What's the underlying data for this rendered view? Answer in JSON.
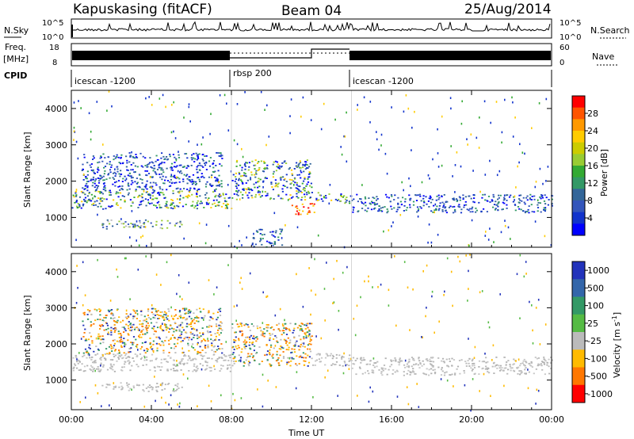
{
  "header": {
    "station": "Kapuskasing (fitACF)",
    "beam": "Beam 04",
    "date": "25/Aug/2014"
  },
  "top_panels": {
    "nsky_label": "N.Sky",
    "nsky_ticks": [
      "10^5",
      "10^0"
    ],
    "nsearch_label": "N.Search",
    "nsearch_ticks": [
      "10^5",
      "10^0"
    ],
    "freq_label_line1": "Freq.",
    "freq_label_line2": "[MHz]",
    "freq_ticks": [
      "18",
      "8"
    ],
    "nave_label": "Nave",
    "nave_ticks": [
      "60",
      "0"
    ],
    "cpid_label": "CPID",
    "cpid_segments": [
      {
        "name": "icescan -1200",
        "start_hour": 0,
        "end_hour": 8
      },
      {
        "name": "rbsp 200",
        "start_hour": 8,
        "end_hour": 14
      },
      {
        "name": "icescan -1200",
        "start_hour": 14,
        "end_hour": 24
      }
    ]
  },
  "power_colorbar": {
    "label": "Power [dB]",
    "ticks": [
      "28",
      "24",
      "20",
      "16",
      "12",
      "8",
      "4"
    ],
    "colors": [
      "#ff0000",
      "#ff5500",
      "#ff9900",
      "#ffcc00",
      "#cccc00",
      "#99cc33",
      "#33aa33",
      "#339966",
      "#336699",
      "#3355bb",
      "#1133cc",
      "#0000ff"
    ]
  },
  "velocity_colorbar": {
    "label": "Velocity [m s^-1]",
    "ticks": [
      "1000",
      "500",
      "100",
      "25",
      "-25",
      "-100",
      "-500",
      "-1000"
    ],
    "colors": [
      "#2233bb",
      "#3366aa",
      "#339966",
      "#55bb44",
      "#bbbbbb",
      "#ffbb00",
      "#ff7700",
      "#ff0000"
    ]
  },
  "chart_data": [
    {
      "type": "heatmap",
      "name": "power",
      "ylabel": "Slant Range [km]",
      "ylim": [
        180,
        4500
      ],
      "yticks": [
        1000,
        2000,
        3000,
        4000
      ],
      "xlim": [
        0,
        24
      ],
      "echo_regions": [
        {
          "t0": 0.0,
          "t1": 8.0,
          "r0": 1250,
          "r1": 1750,
          "level": "strong"
        },
        {
          "t0": 0.5,
          "t1": 7.5,
          "r0": 1750,
          "r1": 2800,
          "level": "medium"
        },
        {
          "t0": 1.5,
          "t1": 5.5,
          "r0": 700,
          "r1": 950,
          "level": "weak"
        },
        {
          "t0": 8.0,
          "t1": 12.0,
          "r0": 1500,
          "r1": 2600,
          "level": "strong"
        },
        {
          "t0": 11.0,
          "t1": 12.2,
          "r0": 1100,
          "r1": 1400,
          "level": "max"
        },
        {
          "t0": 12.2,
          "t1": 14.0,
          "r0": 1400,
          "r1": 1700,
          "level": "strong"
        },
        {
          "t0": 14.0,
          "t1": 24.0,
          "r0": 1150,
          "r1": 1650,
          "level": "medium"
        },
        {
          "t0": 9.0,
          "t1": 10.5,
          "r0": 200,
          "r1": 700,
          "level": "medium"
        }
      ]
    },
    {
      "type": "heatmap",
      "name": "velocity",
      "ylabel": "Slant Range [km]",
      "ylim": [
        180,
        4500
      ],
      "yticks": [
        1000,
        2000,
        3000,
        4000
      ],
      "xlim": [
        0,
        24
      ],
      "xticks": [
        "00:00",
        "04:00",
        "08:00",
        "12:00",
        "16:00",
        "20:00",
        "00:00"
      ],
      "xlabel": "Time UT",
      "echo_regions": [
        {
          "t0": 0.0,
          "t1": 8.0,
          "r0": 1250,
          "r1": 1750,
          "velocity": "ground"
        },
        {
          "t0": 0.5,
          "t1": 7.5,
          "r0": 1750,
          "r1": 3000,
          "velocity": "negative"
        },
        {
          "t0": 8.0,
          "t1": 12.0,
          "r0": 1400,
          "r1": 2600,
          "velocity": "negative"
        },
        {
          "t0": 12.0,
          "t1": 14.0,
          "r0": 1400,
          "r1": 1750,
          "velocity": "ground"
        },
        {
          "t0": 14.0,
          "t1": 24.0,
          "r0": 1150,
          "r1": 1650,
          "velocity": "ground"
        },
        {
          "t0": 1.5,
          "t1": 5.5,
          "r0": 700,
          "r1": 950,
          "velocity": "ground"
        }
      ]
    }
  ]
}
